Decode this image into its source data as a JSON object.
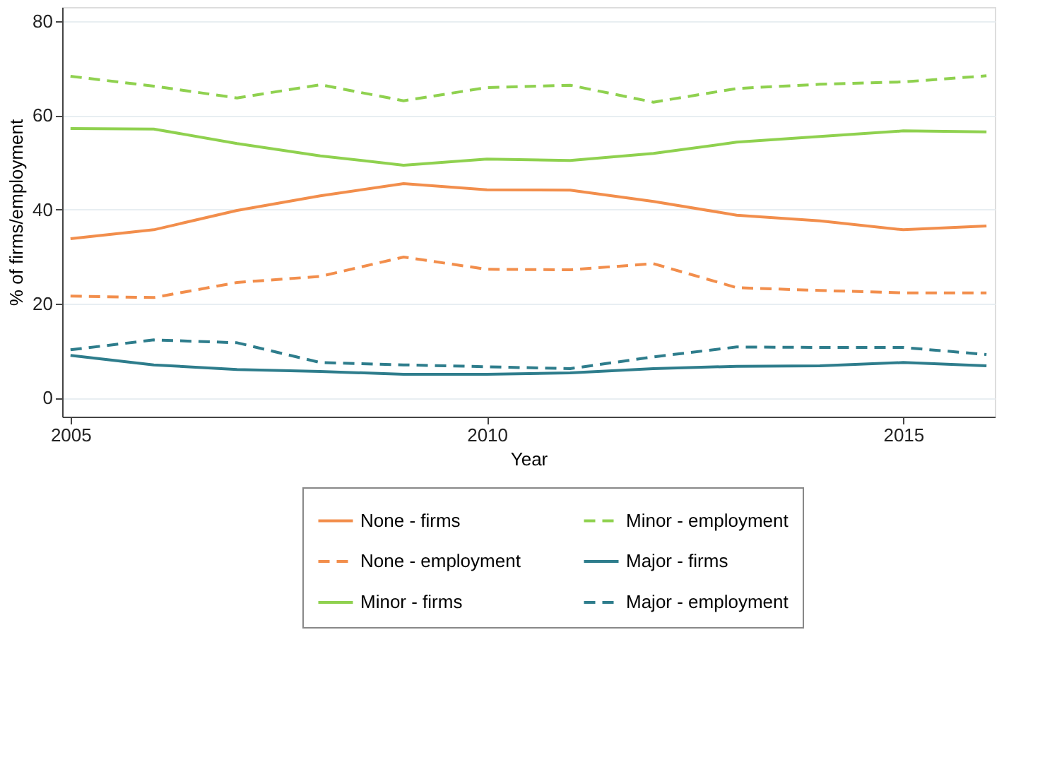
{
  "chart_data": {
    "type": "line",
    "xlabel": "Year",
    "ylabel": "% of firms/employment",
    "x": [
      2005,
      2006,
      2007,
      2008,
      2009,
      2010,
      2011,
      2012,
      2013,
      2014,
      2015,
      2016
    ],
    "series": [
      {
        "name": "None - firms",
        "color": "#f28e4c",
        "line_style": "solid",
        "values": [
          33.8,
          35.7,
          39.8,
          42.9,
          45.5,
          44.2,
          44.1,
          41.7,
          38.8,
          37.6,
          35.7,
          36.5
        ]
      },
      {
        "name": "None - employment",
        "color": "#f28e4c",
        "line_style": "dashed",
        "values": [
          21.6,
          21.3,
          24.5,
          25.8,
          29.9,
          27.3,
          27.2,
          28.5,
          23.4,
          22.8,
          22.3,
          22.3
        ]
      },
      {
        "name": "Minor - firms",
        "color": "#8fd14f",
        "line_style": "solid",
        "values": [
          57.2,
          57.1,
          54.0,
          51.4,
          49.4,
          50.7,
          50.4,
          51.9,
          54.3,
          55.5,
          56.7,
          56.5
        ]
      },
      {
        "name": "Minor - employment",
        "color": "#8fd14f",
        "line_style": "dashed",
        "values": [
          68.3,
          66.2,
          63.7,
          66.5,
          63.1,
          65.9,
          66.4,
          62.8,
          65.7,
          66.6,
          67.1,
          68.4
        ]
      },
      {
        "name": "Major - firms",
        "color": "#2e7d8c",
        "line_style": "solid",
        "values": [
          9.0,
          7.0,
          6.0,
          5.6,
          5.0,
          5.0,
          5.3,
          6.2,
          6.7,
          6.8,
          7.5,
          6.8
        ]
      },
      {
        "name": "Major - employment",
        "color": "#2e7d8c",
        "line_style": "dashed",
        "values": [
          10.2,
          12.3,
          11.7,
          7.5,
          7.0,
          6.6,
          6.2,
          8.7,
          10.8,
          10.7,
          10.7,
          9.2
        ]
      }
    ],
    "xlim": [
      2004.9,
      2016.1
    ],
    "xticks": [
      2005,
      2010,
      2015
    ],
    "ylim": [
      -4,
      83
    ],
    "yticks": [
      0,
      20,
      40,
      60,
      80
    ],
    "grid": "y",
    "legend": "bottom",
    "marker": "none"
  }
}
